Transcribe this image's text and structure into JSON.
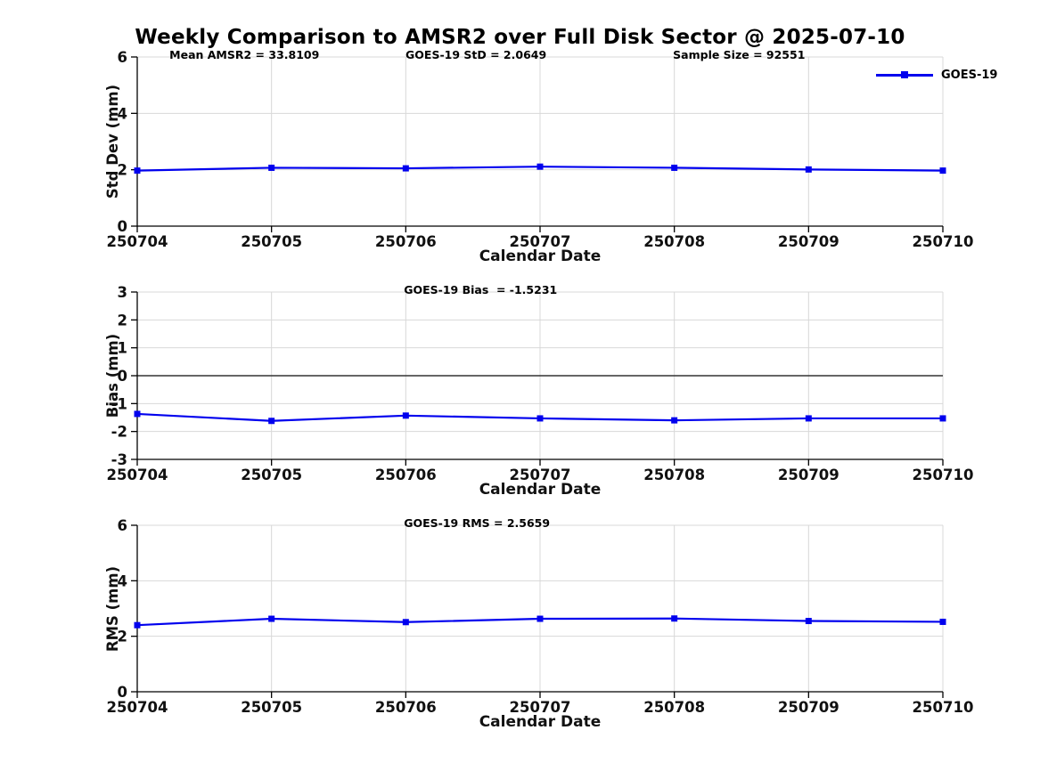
{
  "title": "Weekly Comparison to AMSR2 over Full Disk Sector @ 2025-07-10",
  "legend": {
    "label": "GOES-19",
    "position": "top-right"
  },
  "colors": {
    "line": "#0000EE",
    "grid": "#d8d8d8",
    "axis": "#000000",
    "zero_line": "#333333",
    "text": "#111111"
  },
  "chart_data": [
    {
      "type": "line",
      "ylabel": "Std Dev (mm)",
      "xlabel": "Calendar Date",
      "categories": [
        "250704",
        "250705",
        "250706",
        "250707",
        "250708",
        "250709",
        "250710"
      ],
      "series": [
        {
          "name": "GOES-19",
          "values": [
            1.97,
            2.07,
            2.05,
            2.11,
            2.07,
            2.01,
            1.97
          ]
        }
      ],
      "ylim": [
        0,
        6
      ],
      "yticks": [
        0,
        2,
        4,
        6
      ],
      "grid": true,
      "legend_position": "top-right",
      "annotations": [
        "Mean AMSR2 = 33.8109",
        "GOES-19 StD = 2.0649",
        "Sample Size = 92551"
      ],
      "annotation_x": [
        0.04,
        0.333,
        0.665
      ]
    },
    {
      "type": "line",
      "ylabel": "Bias (mm)",
      "xlabel": "Calendar Date",
      "categories": [
        "250704",
        "250705",
        "250706",
        "250707",
        "250708",
        "250709",
        "250710"
      ],
      "series": [
        {
          "name": "GOES-19",
          "values": [
            -1.37,
            -1.62,
            -1.43,
            -1.53,
            -1.6,
            -1.53,
            -1.53
          ]
        }
      ],
      "ylim": [
        -3,
        3
      ],
      "yticks": [
        -3,
        -2,
        -1,
        0,
        1,
        2,
        3
      ],
      "grid": true,
      "zero_line": true,
      "annotations": [
        "GOES-19 Bias  = -1.5231"
      ],
      "annotation_x": [
        0.331
      ]
    },
    {
      "type": "line",
      "ylabel": "RMS (mm)",
      "xlabel": "Calendar Date",
      "categories": [
        "250704",
        "250705",
        "250706",
        "250707",
        "250708",
        "250709",
        "250710"
      ],
      "series": [
        {
          "name": "GOES-19",
          "values": [
            2.4,
            2.63,
            2.51,
            2.63,
            2.64,
            2.55,
            2.52
          ]
        }
      ],
      "ylim": [
        0,
        6
      ],
      "yticks": [
        0,
        2,
        4,
        6
      ],
      "grid": true,
      "annotations": [
        "GOES-19 RMS = 2.5659"
      ],
      "annotation_x": [
        0.331
      ]
    }
  ]
}
